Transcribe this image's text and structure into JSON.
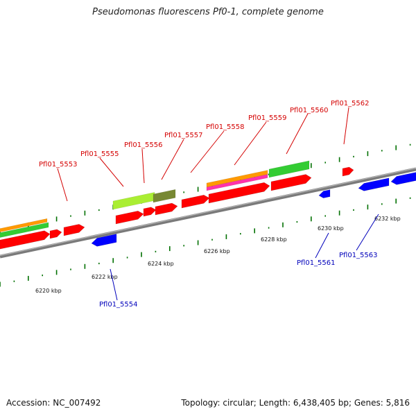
{
  "title": "Pseudomonas fluorescens Pf0-1, complete genome",
  "footer": {
    "accession": "Accession: NC_007492",
    "summary": "Topology: circular; Length: 6,438,405 bp; Genes: 5,816"
  },
  "colors": {
    "backbone": "#8c8c8c",
    "forward": "#ff0000",
    "reverse": "#0000ff",
    "tick": "#007000",
    "orange": "#ff9900",
    "green": "#33cc33",
    "lime": "#aaee33",
    "olive": "#778833",
    "magenta": "#ff33aa"
  },
  "scale_labels": [
    "6220 kbp",
    "6222 kbp",
    "6224 kbp",
    "6226 kbp",
    "6228 kbp",
    "6230 kbp",
    "6232 kbp"
  ],
  "forward_genes": [
    "Pfl01_5553",
    "Pfl01_5555",
    "Pfl01_5556",
    "Pfl01_5557",
    "Pfl01_5558",
    "Pfl01_5559",
    "Pfl01_5560",
    "Pfl01_5562"
  ],
  "reverse_genes": [
    "Pfl01_5554",
    "Pfl01_5561",
    "Pfl01_5563"
  ]
}
